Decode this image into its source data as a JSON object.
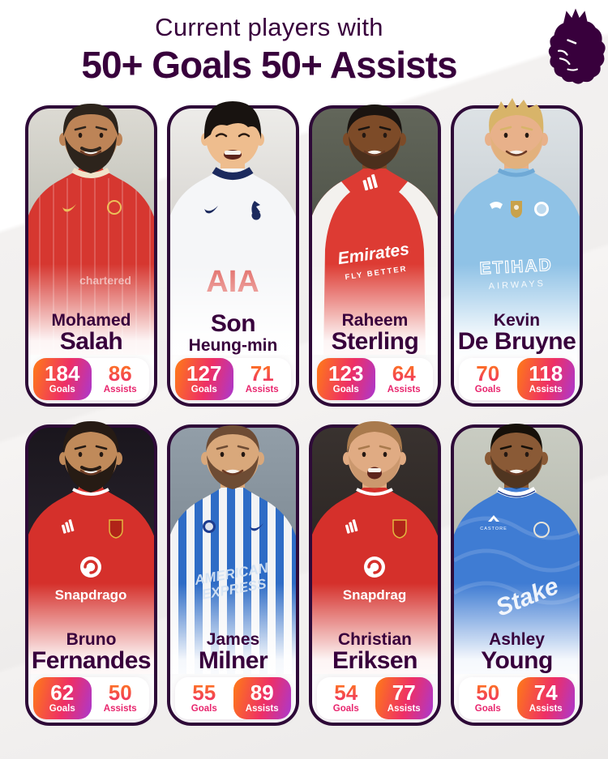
{
  "header": {
    "subtitle": "Current players with",
    "title": "50+ Goals 50+ Assists"
  },
  "logo": {
    "name": "premier-league-lion",
    "color": "#38003c"
  },
  "colors": {
    "title_purple": "#38003c",
    "card_border": "#2e0a38",
    "badge_gradient": [
      "#ff7b16",
      "#ee2f66",
      "#aa38d0"
    ],
    "number_gradient": [
      "#ff7b1c",
      "#ee2c69"
    ],
    "stat_label_pink": "#e8256d"
  },
  "stats_labels": {
    "goals": "Goals",
    "assists": "Assists"
  },
  "players": [
    {
      "line1": "Mohamed",
      "line2": "Salah",
      "big": "2",
      "goals": 184,
      "assists": 86,
      "highlight": "goals",
      "kit": {
        "style": "salah",
        "jersey": "#d63730",
        "collar": "#f0e3c9",
        "logo": "#ecc05a",
        "skin": "#bd8457",
        "hair": "#2d241c",
        "beard": "full",
        "eyes": "open",
        "mouth": "smile",
        "bg1": "#dcdad3",
        "bg2": "#a9aca1",
        "sponsor1": "chartered",
        "sponsor2": "",
        "sponsorColor": "#ffffff"
      }
    },
    {
      "line1": "Son",
      "line2": "Heung-min",
      "big": "1",
      "goals": 127,
      "assists": 71,
      "highlight": "goals",
      "kit": {
        "style": "son",
        "jersey": "#f5f6f8",
        "collar": "#1c2a5e",
        "logo": "#1c2a5e",
        "skin": "#eebd8e",
        "hair": "#181310",
        "beard": "none",
        "eyes": "closed",
        "mouth": "grin",
        "bg1": "#edece9",
        "bg2": "#c6c2bd",
        "sponsor1": "AIA",
        "sponsor2": "",
        "sponsorColor": "#dd4a42"
      }
    },
    {
      "line1": "Raheem",
      "line2": "Sterling",
      "big": "2",
      "goals": 123,
      "assists": 64,
      "highlight": "goals",
      "kit": {
        "style": "sterling",
        "jersey": "#dd3b33",
        "collar": "#ffffff",
        "logo": "#ffffff",
        "skin": "#7d4b28",
        "hair": "#1a1410",
        "beard": "thin",
        "eyes": "open",
        "mouth": "smile",
        "bg1": "#62665a",
        "bg2": "#41453c",
        "sponsor1": "Emirates",
        "sponsor2": "FLY BETTER",
        "sponsorColor": "#ffffff"
      }
    },
    {
      "line1": "Kevin",
      "line2": "De Bruyne",
      "big": "2",
      "goals": 70,
      "assists": 118,
      "highlight": "assists",
      "kit": {
        "style": "kdb",
        "jersey": "#8fc2e6",
        "collar": "#6fa9d6",
        "logo": "#ffffff",
        "skin": "#e8b18a",
        "hair": "#d8b469",
        "beard": "stubble",
        "eyes": "open",
        "mouth": "smile",
        "bg1": "#dde2e5",
        "bg2": "#b6bfc6",
        "sponsor1": "ETIHAD",
        "sponsor2": "AIRWAYS",
        "sponsorColor": "#ffffff"
      }
    },
    {
      "line1": "Bruno",
      "line2": "Fernandes",
      "big": "2",
      "goals": 62,
      "assists": 50,
      "highlight": "goals",
      "kit": {
        "style": "manu",
        "jersey": "#d5302b",
        "collar": "#ffffff",
        "logo": "#ffffff",
        "skin": "#c08a5a",
        "hair": "#261b14",
        "beard": "full",
        "eyes": "open",
        "mouth": "smile",
        "bg1": "#1a161d",
        "bg2": "#322b36",
        "sponsor1": "Snapdrago",
        "sponsor2": "",
        "sponsorColor": "#ffffff"
      }
    },
    {
      "line1": "James",
      "line2": "Milner",
      "big": "2",
      "goals": 55,
      "assists": 89,
      "highlight": "assists",
      "kit": {
        "style": "milner",
        "jersey": "#2e6cc6",
        "collar": "#1d3c8f",
        "logo": "#1d3c8f",
        "skin": "#d9a87b",
        "hair": "#6e4c34",
        "beard": "med",
        "eyes": "open",
        "mouth": "smile",
        "bg1": "#929ea8",
        "bg2": "#707c86",
        "sponsor1": "AMERICAN",
        "sponsor2": "EXPRESS",
        "sponsorColor": "#d3e2f2"
      }
    },
    {
      "line1": "Christian",
      "line2": "Eriksen",
      "big": "2",
      "goals": 54,
      "assists": 77,
      "highlight": "assists",
      "kit": {
        "style": "manu",
        "jersey": "#d5302b",
        "collar": "#ffffff",
        "logo": "#ffffff",
        "skin": "#e0ab83",
        "hair": "#a97a4d",
        "beard": "stubble",
        "eyes": "open",
        "mouth": "shout",
        "bg1": "#39322f",
        "bg2": "#221d1b",
        "sponsor1": "Snapdrag",
        "sponsor2": "",
        "sponsorColor": "#ffffff"
      }
    },
    {
      "line1": "Ashley",
      "line2": "Young",
      "big": "2",
      "goals": 50,
      "assists": 74,
      "highlight": "assists",
      "kit": {
        "style": "young",
        "jersey": "#3f7cd3",
        "collar": "#ffffff",
        "logo": "#ffffff",
        "skin": "#8a5a36",
        "hair": "#161009",
        "beard": "thin",
        "eyes": "open",
        "mouth": "smile",
        "bg1": "#c9ccc2",
        "bg2": "#a7ab9f",
        "sponsor1": "Stake",
        "sponsor2": "CASTORE",
        "sponsorColor": "#ffffff"
      }
    }
  ]
}
